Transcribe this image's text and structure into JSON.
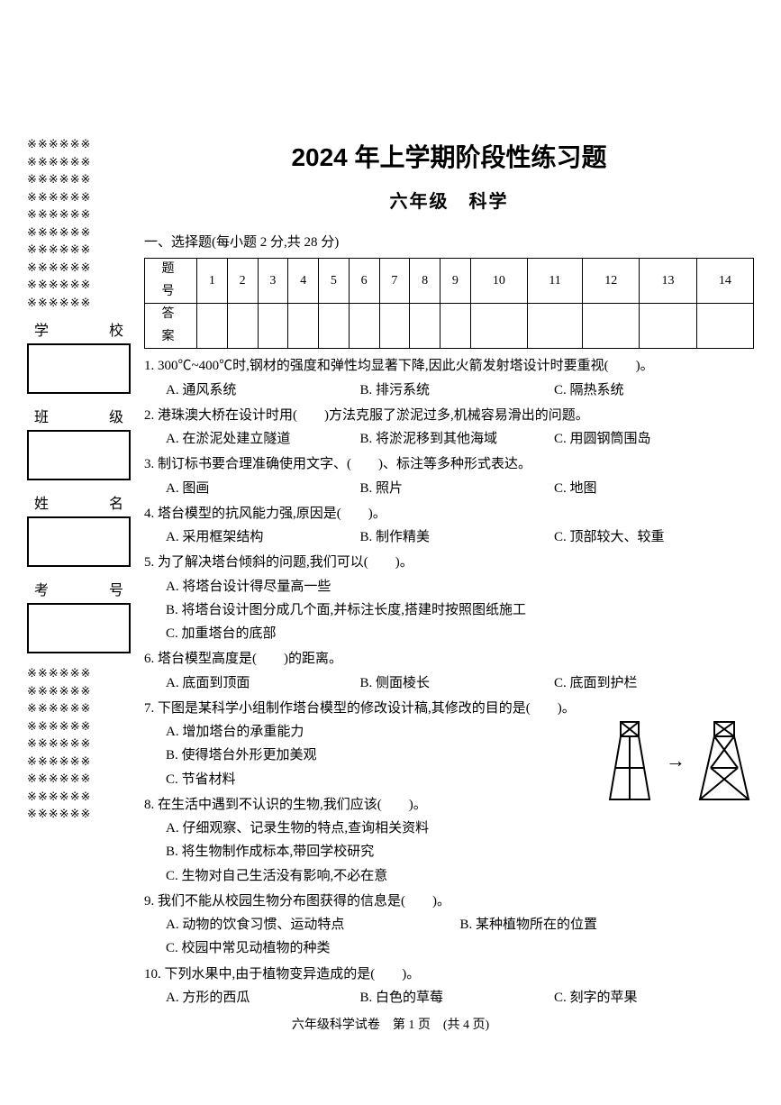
{
  "sidebar": {
    "deco_line": "※※※※※※",
    "labels": {
      "school": "学　　校",
      "class": "班　　级",
      "name": "姓　　名",
      "exam_no": "考　　号"
    }
  },
  "title": "2024 年上学期阶段性练习题",
  "subtitle": "六年级　科学",
  "section1": {
    "heading": "一、选择题(每小题 2 分,共 28 分)",
    "table": {
      "row_header_1": "题　号",
      "row_header_2": "答　案",
      "numbers": [
        "1",
        "2",
        "3",
        "4",
        "5",
        "6",
        "7",
        "8",
        "9",
        "10",
        "11",
        "12",
        "13",
        "14"
      ]
    }
  },
  "questions": [
    {
      "num": "1.",
      "text": "300℃~400℃时,钢材的强度和弹性均显著下降,因此火箭发射塔设计时要重视(　　)。",
      "options": [
        "A. 通风系统",
        "B. 排污系统",
        "C. 隔热系统"
      ],
      "layout": "col3"
    },
    {
      "num": "2.",
      "text": "港珠澳大桥在设计时用(　　)方法克服了淤泥过多,机械容易滑出的问题。",
      "options": [
        "A. 在淤泥处建立隧道",
        "B. 将淤泥移到其他海域",
        "C. 用圆钢筒围岛"
      ],
      "layout": "col3"
    },
    {
      "num": "3.",
      "text": "制订标书要合理准确使用文字、(　　)、标注等多种形式表达。",
      "options": [
        "A. 图画",
        "B. 照片",
        "C. 地图"
      ],
      "layout": "col3"
    },
    {
      "num": "4.",
      "text": "塔台模型的抗风能力强,原因是(　　)。",
      "options": [
        "A. 采用框架结构",
        "B. 制作精美",
        "C. 顶部较大、较重"
      ],
      "layout": "col3"
    },
    {
      "num": "5.",
      "text": "为了解决塔台倾斜的问题,我们可以(　　)。",
      "options": [
        "A. 将塔台设计得尽量高一些",
        "B. 将塔台设计图分成几个面,并标注长度,搭建时按照图纸施工",
        "C. 加重塔台的底部"
      ],
      "layout": "col1"
    },
    {
      "num": "6.",
      "text": "塔台模型高度是(　　)的距离。",
      "options": [
        "A. 底面到顶面",
        "B. 侧面棱长",
        "C. 底面到护栏"
      ],
      "layout": "col3"
    },
    {
      "num": "7.",
      "text": "下图是某科学小组制作塔台模型的修改设计稿,其修改的目的是(　　)。",
      "options": [
        "A. 增加塔台的承重能力",
        "B. 使得塔台外形更加美观",
        "C. 节省材料"
      ],
      "layout": "col1",
      "figure": true
    },
    {
      "num": "8.",
      "text": "在生活中遇到不认识的生物,我们应该(　　)。",
      "options": [
        "A. 仔细观察、记录生物的特点,查询相关资料",
        "B. 将生物制作成标本,带回学校研究",
        "C. 生物对自己生活没有影响,不必在意"
      ],
      "layout": "col1"
    },
    {
      "num": "9.",
      "text": "我们不能从校园生物分布图获得的信息是(　　)。",
      "options": [
        "A. 动物的饮食习惯、运动特点",
        "B. 某种植物所在的位置",
        "C. 校园中常见动植物的种类"
      ],
      "layout": "col3-2"
    },
    {
      "num": "10.",
      "text": "下列水果中,由于植物变异造成的是(　　)。",
      "options": [
        "A. 方形的西瓜",
        "B. 白色的草莓",
        "C. 刻字的苹果"
      ],
      "layout": "col3"
    }
  ],
  "footer": "六年级科学试卷　第 1 页　(共 4 页)",
  "figure": {
    "tower1": {
      "stroke": "#000000"
    },
    "tower2": {
      "stroke": "#000000"
    }
  }
}
